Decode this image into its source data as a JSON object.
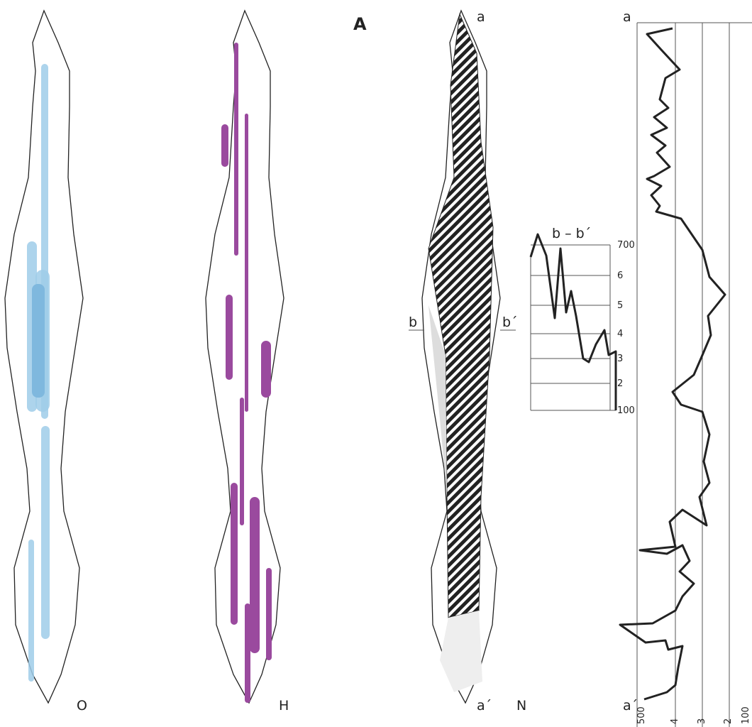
{
  "panel_label": "A",
  "specimens": [
    {
      "label": "O"
    },
    {
      "label": "H"
    },
    {
      "label": "N",
      "top": "a",
      "bottom": "a´",
      "left": "b",
      "right": "b´"
    }
  ],
  "section": {
    "title": "b – b´",
    "scale": [
      "700",
      "6",
      "5",
      "4",
      "3",
      "2",
      "100"
    ]
  },
  "profile": {
    "top": "a",
    "bottom": "a´",
    "scale": [
      "500",
      "4",
      "3",
      "2",
      "100"
    ]
  }
}
